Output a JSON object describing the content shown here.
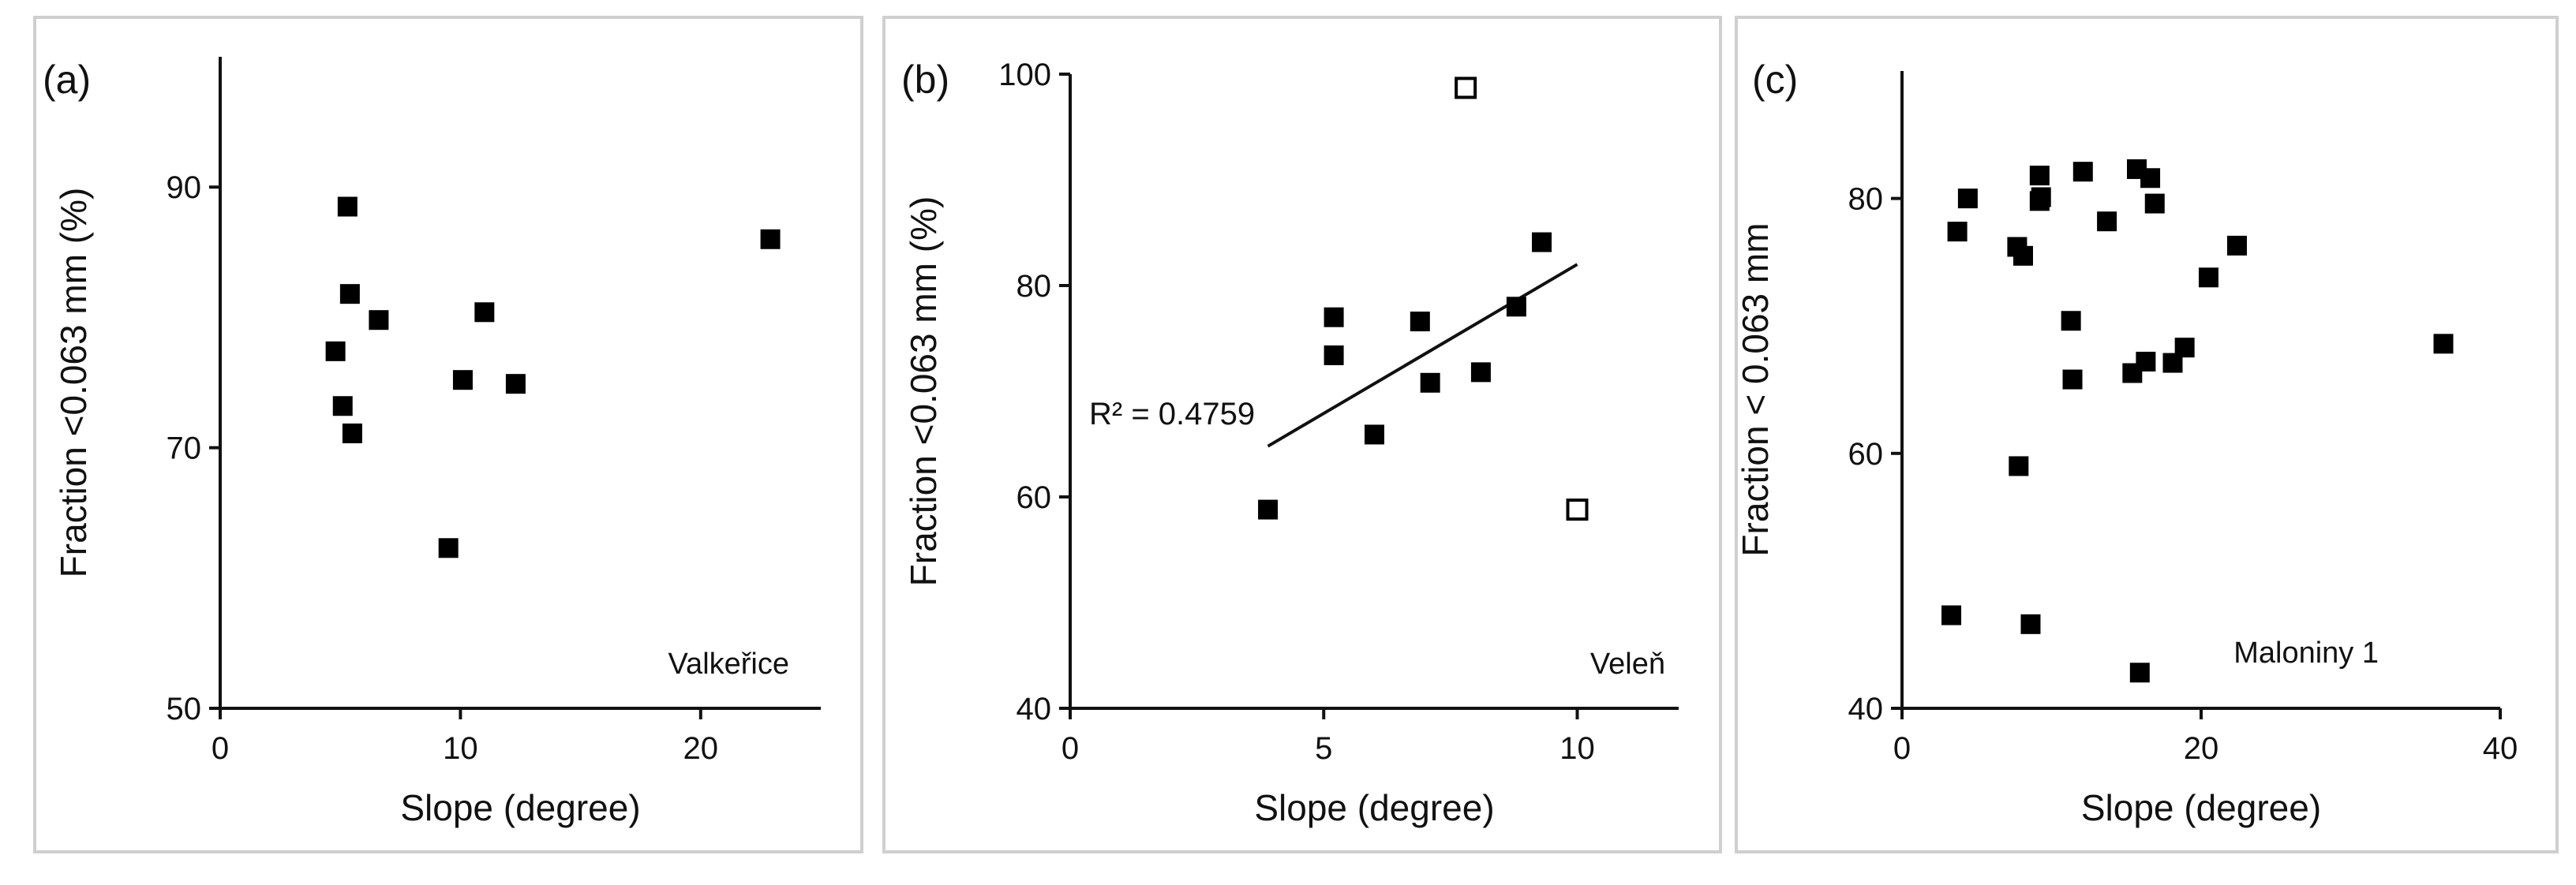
{
  "chart_data": [
    {
      "type": "scatter",
      "panel_label": "(a)",
      "site_label": "Valkeřice",
      "xlabel": "Slope (degree)",
      "ylabel": "Fraction <0.063 mm (%)",
      "xlim": [
        0,
        25
      ],
      "ylim": [
        50,
        100
      ],
      "xticks": [
        0,
        10,
        20
      ],
      "yticks": [
        50,
        70,
        90
      ],
      "series": [
        {
          "marker": "filled-square",
          "points": [
            {
              "x": 5.3,
              "y": 88.5
            },
            {
              "x": 5.4,
              "y": 81.8
            },
            {
              "x": 6.6,
              "y": 79.8
            },
            {
              "x": 4.8,
              "y": 77.4
            },
            {
              "x": 5.1,
              "y": 73.2
            },
            {
              "x": 5.5,
              "y": 71.1
            },
            {
              "x": 9.5,
              "y": 62.3
            },
            {
              "x": 10.1,
              "y": 75.2
            },
            {
              "x": 11.0,
              "y": 80.4
            },
            {
              "x": 12.3,
              "y": 74.9
            },
            {
              "x": 22.9,
              "y": 86.0
            }
          ]
        }
      ]
    },
    {
      "type": "scatter",
      "panel_label": "(b)",
      "site_label": "Veleň",
      "xlabel": "Slope (degree)",
      "ylabel": "Fraction <0.063 mm (%)",
      "xlim": [
        0,
        12
      ],
      "ylim": [
        40,
        100
      ],
      "xticks": [
        0,
        5,
        10
      ],
      "yticks": [
        40,
        60,
        80,
        100
      ],
      "annotation": "R² = 0.4759",
      "trendline": {
        "x": [
          3.9,
          10.0
        ],
        "y": [
          64.8,
          82.0
        ]
      },
      "series": [
        {
          "marker": "filled-square",
          "points": [
            {
              "x": 3.9,
              "y": 58.8
            },
            {
              "x": 5.2,
              "y": 77.0
            },
            {
              "x": 5.2,
              "y": 73.4
            },
            {
              "x": 6.0,
              "y": 65.9
            },
            {
              "x": 6.9,
              "y": 76.6
            },
            {
              "x": 7.1,
              "y": 70.8
            },
            {
              "x": 8.1,
              "y": 71.8
            },
            {
              "x": 8.8,
              "y": 78.0
            },
            {
              "x": 9.3,
              "y": 84.1
            }
          ]
        },
        {
          "marker": "open-square",
          "points": [
            {
              "x": 7.8,
              "y": 98.7
            },
            {
              "x": 10.0,
              "y": 58.8
            }
          ]
        }
      ]
    },
    {
      "type": "scatter",
      "panel_label": "(c)",
      "site_label": "Maloniny 1",
      "xlabel": "Slope (degree)",
      "ylabel": "Fraction < 0.063 mm",
      "xlim": [
        0,
        40
      ],
      "ylim": [
        40,
        90
      ],
      "xticks": [
        0,
        20,
        40
      ],
      "yticks": [
        40,
        60,
        80
      ],
      "series": [
        {
          "marker": "filled-square",
          "points": [
            {
              "x": 3.7,
              "y": 77.4
            },
            {
              "x": 4.4,
              "y": 80.0
            },
            {
              "x": 7.7,
              "y": 76.2
            },
            {
              "x": 8.1,
              "y": 75.5
            },
            {
              "x": 9.2,
              "y": 81.8
            },
            {
              "x": 9.2,
              "y": 79.8
            },
            {
              "x": 9.3,
              "y": 80.1
            },
            {
              "x": 12.1,
              "y": 82.1
            },
            {
              "x": 15.7,
              "y": 82.3
            },
            {
              "x": 13.7,
              "y": 78.2
            },
            {
              "x": 16.6,
              "y": 81.6
            },
            {
              "x": 16.9,
              "y": 79.6
            },
            {
              "x": 22.4,
              "y": 76.3
            },
            {
              "x": 20.5,
              "y": 73.8
            },
            {
              "x": 11.3,
              "y": 70.4
            },
            {
              "x": 11.4,
              "y": 65.8
            },
            {
              "x": 15.4,
              "y": 66.3
            },
            {
              "x": 16.3,
              "y": 67.2
            },
            {
              "x": 18.1,
              "y": 67.1
            },
            {
              "x": 18.9,
              "y": 68.3
            },
            {
              "x": 36.2,
              "y": 68.6
            },
            {
              "x": 7.8,
              "y": 59.0
            },
            {
              "x": 3.3,
              "y": 47.3
            },
            {
              "x": 8.6,
              "y": 46.6
            },
            {
              "x": 15.9,
              "y": 42.8
            }
          ]
        }
      ]
    }
  ]
}
